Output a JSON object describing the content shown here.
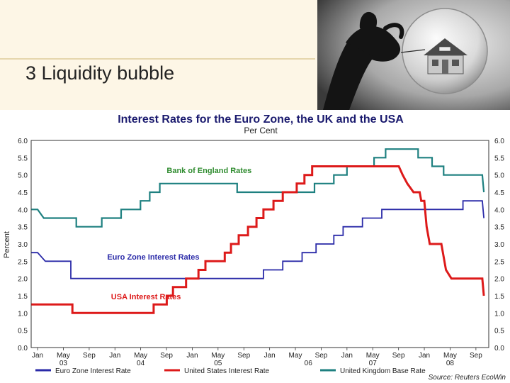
{
  "slide": {
    "title": "3 Liquidity bubble",
    "image_icon": "hand-pinning-house-bubble-photo"
  },
  "chart_data": {
    "type": "line",
    "title": "Interest Rates for the Euro Zone, the UK and the USA",
    "subtitle": "Per Cent",
    "ylabel": "Percent",
    "ylim": [
      0,
      6
    ],
    "yticks": [
      "0.0",
      "0.5",
      "1.0",
      "1.5",
      "2.0",
      "2.5",
      "3.0",
      "3.5",
      "4.0",
      "4.5",
      "5.0",
      "5.5",
      "6.0"
    ],
    "xlim": [
      2002.917,
      2008.833
    ],
    "x_month_labels": [
      {
        "x": 2003.0,
        "label": "Jan"
      },
      {
        "x": 2003.333,
        "label": "May"
      },
      {
        "x": 2003.667,
        "label": "Sep"
      },
      {
        "x": 2004.0,
        "label": "Jan"
      },
      {
        "x": 2004.333,
        "label": "May"
      },
      {
        "x": 2004.667,
        "label": "Sep"
      },
      {
        "x": 2005.0,
        "label": "Jan"
      },
      {
        "x": 2005.333,
        "label": "May"
      },
      {
        "x": 2005.667,
        "label": "Sep"
      },
      {
        "x": 2006.0,
        "label": "Jan"
      },
      {
        "x": 2006.333,
        "label": "May"
      },
      {
        "x": 2006.667,
        "label": "Sep"
      },
      {
        "x": 2007.0,
        "label": "Jan"
      },
      {
        "x": 2007.333,
        "label": "May"
      },
      {
        "x": 2007.667,
        "label": "Sep"
      },
      {
        "x": 2008.0,
        "label": "Jan"
      },
      {
        "x": 2008.333,
        "label": "May"
      },
      {
        "x": 2008.667,
        "label": "Sep"
      }
    ],
    "x_year_labels": [
      {
        "x": 2003.333,
        "label": "03"
      },
      {
        "x": 2004.333,
        "label": "04"
      },
      {
        "x": 2005.333,
        "label": "05"
      },
      {
        "x": 2006.5,
        "label": "06"
      },
      {
        "x": 2007.333,
        "label": "07"
      },
      {
        "x": 2008.333,
        "label": "08"
      }
    ],
    "vertical_grid_x": [
      2003.0,
      2003.667,
      2005.0,
      2006.0,
      2007.0,
      2008.0
    ],
    "grid": true,
    "series": [
      {
        "name": "United Kingdom Base Rate",
        "color": "#1e8080",
        "points": [
          [
            2002.92,
            4.0
          ],
          [
            2003.0,
            4.0
          ],
          [
            2003.08,
            3.75
          ],
          [
            2003.5,
            3.75
          ],
          [
            2003.5,
            3.5
          ],
          [
            2003.83,
            3.5
          ],
          [
            2003.83,
            3.75
          ],
          [
            2004.08,
            3.75
          ],
          [
            2004.08,
            4.0
          ],
          [
            2004.33,
            4.0
          ],
          [
            2004.33,
            4.25
          ],
          [
            2004.45,
            4.25
          ],
          [
            2004.45,
            4.5
          ],
          [
            2004.58,
            4.5
          ],
          [
            2004.58,
            4.75
          ],
          [
            2005.58,
            4.75
          ],
          [
            2005.58,
            4.5
          ],
          [
            2006.58,
            4.5
          ],
          [
            2006.58,
            4.75
          ],
          [
            2006.83,
            4.75
          ],
          [
            2006.83,
            5.0
          ],
          [
            2007.0,
            5.0
          ],
          [
            2007.0,
            5.25
          ],
          [
            2007.35,
            5.25
          ],
          [
            2007.35,
            5.5
          ],
          [
            2007.5,
            5.5
          ],
          [
            2007.5,
            5.75
          ],
          [
            2007.92,
            5.75
          ],
          [
            2007.92,
            5.5
          ],
          [
            2008.1,
            5.5
          ],
          [
            2008.1,
            5.25
          ],
          [
            2008.25,
            5.25
          ],
          [
            2008.25,
            5.0
          ],
          [
            2008.75,
            5.0
          ],
          [
            2008.77,
            4.5
          ]
        ]
      },
      {
        "name": "Euro Zone Interest Rate",
        "color": "#2a2aa8",
        "points": [
          [
            2002.92,
            2.75
          ],
          [
            2003.0,
            2.75
          ],
          [
            2003.1,
            2.5
          ],
          [
            2003.43,
            2.5
          ],
          [
            2003.43,
            2.0
          ],
          [
            2005.92,
            2.0
          ],
          [
            2005.92,
            2.25
          ],
          [
            2006.17,
            2.25
          ],
          [
            2006.17,
            2.5
          ],
          [
            2006.42,
            2.5
          ],
          [
            2006.42,
            2.75
          ],
          [
            2006.6,
            2.75
          ],
          [
            2006.6,
            3.0
          ],
          [
            2006.83,
            3.0
          ],
          [
            2006.83,
            3.25
          ],
          [
            2006.95,
            3.25
          ],
          [
            2006.95,
            3.5
          ],
          [
            2007.2,
            3.5
          ],
          [
            2007.2,
            3.75
          ],
          [
            2007.45,
            3.75
          ],
          [
            2007.45,
            4.0
          ],
          [
            2008.5,
            4.0
          ],
          [
            2008.5,
            4.25
          ],
          [
            2008.75,
            4.25
          ],
          [
            2008.77,
            3.75
          ]
        ]
      },
      {
        "name": "United States Interest Rate",
        "color": "#dd1a1a",
        "points": [
          [
            2002.92,
            1.25
          ],
          [
            2003.45,
            1.25
          ],
          [
            2003.45,
            1.0
          ],
          [
            2004.5,
            1.0
          ],
          [
            2004.5,
            1.25
          ],
          [
            2004.67,
            1.25
          ],
          [
            2004.67,
            1.5
          ],
          [
            2004.75,
            1.5
          ],
          [
            2004.75,
            1.75
          ],
          [
            2004.92,
            1.75
          ],
          [
            2004.92,
            2.0
          ],
          [
            2005.08,
            2.0
          ],
          [
            2005.08,
            2.25
          ],
          [
            2005.17,
            2.25
          ],
          [
            2005.17,
            2.5
          ],
          [
            2005.42,
            2.5
          ],
          [
            2005.42,
            2.75
          ],
          [
            2005.5,
            2.75
          ],
          [
            2005.5,
            3.0
          ],
          [
            2005.6,
            3.0
          ],
          [
            2005.6,
            3.25
          ],
          [
            2005.72,
            3.25
          ],
          [
            2005.72,
            3.5
          ],
          [
            2005.83,
            3.5
          ],
          [
            2005.83,
            3.75
          ],
          [
            2005.92,
            3.75
          ],
          [
            2005.92,
            4.0
          ],
          [
            2006.05,
            4.0
          ],
          [
            2006.05,
            4.25
          ],
          [
            2006.17,
            4.25
          ],
          [
            2006.17,
            4.5
          ],
          [
            2006.35,
            4.5
          ],
          [
            2006.35,
            4.75
          ],
          [
            2006.45,
            4.75
          ],
          [
            2006.45,
            5.0
          ],
          [
            2006.55,
            5.0
          ],
          [
            2006.55,
            5.25
          ],
          [
            2007.67,
            5.25
          ],
          [
            2007.72,
            5.0
          ],
          [
            2007.78,
            4.75
          ],
          [
            2007.86,
            4.5
          ],
          [
            2007.94,
            4.5
          ],
          [
            2007.96,
            4.25
          ],
          [
            2008.0,
            4.25
          ],
          [
            2008.03,
            3.5
          ],
          [
            2008.07,
            3.0
          ],
          [
            2008.22,
            3.0
          ],
          [
            2008.28,
            2.25
          ],
          [
            2008.35,
            2.0
          ],
          [
            2008.6,
            2.0
          ],
          [
            2008.75,
            2.0
          ],
          [
            2008.77,
            1.5
          ]
        ]
      }
    ],
    "annotations": [
      {
        "text": "Bank of England Rates",
        "x": 2004.67,
        "y": 5.05,
        "color": "#2e8b2e"
      },
      {
        "text": "Euro Zone Interest Rates",
        "x": 2003.9,
        "y": 2.55,
        "color": "#2a2aa8"
      },
      {
        "text": "USA Interest Rates",
        "x": 2003.95,
        "y": 1.4,
        "color": "#dd1a1a"
      }
    ],
    "legend": {
      "placement": "bottom",
      "entries": [
        "Euro Zone Interest Rate",
        "United States Interest Rate",
        "United Kingdom Base Rate"
      ]
    },
    "source": "Source: Reuters EcoWin"
  }
}
